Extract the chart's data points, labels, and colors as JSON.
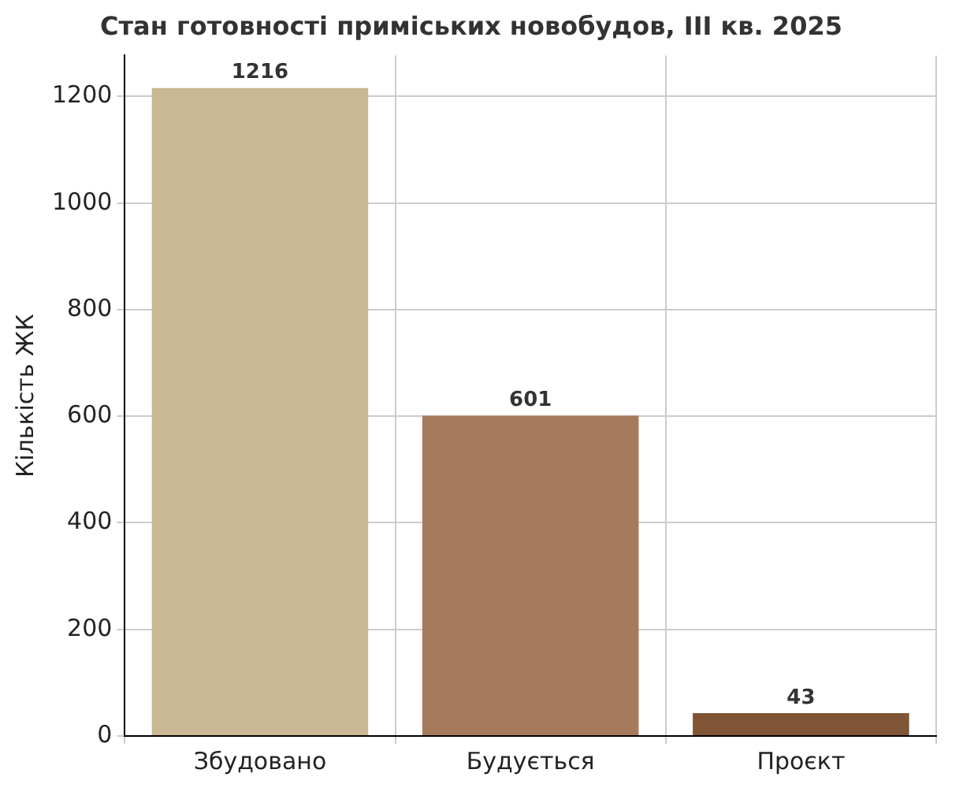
{
  "chart_data": {
    "type": "bar",
    "title": "Стан готовності приміських новобудов, III кв. 2025",
    "ylabel": "Кількість ЖК",
    "categories": [
      "Збудовано",
      "Будується",
      "Проєкт"
    ],
    "values": [
      1216,
      601,
      43
    ],
    "colors": [
      "#c9b893",
      "#a67b5c",
      "#7f5535"
    ],
    "ylim": [
      0,
      1277
    ],
    "yticks": [
      0,
      200,
      400,
      600,
      800,
      1000,
      1200
    ],
    "grid": true,
    "data_labels": true
  }
}
